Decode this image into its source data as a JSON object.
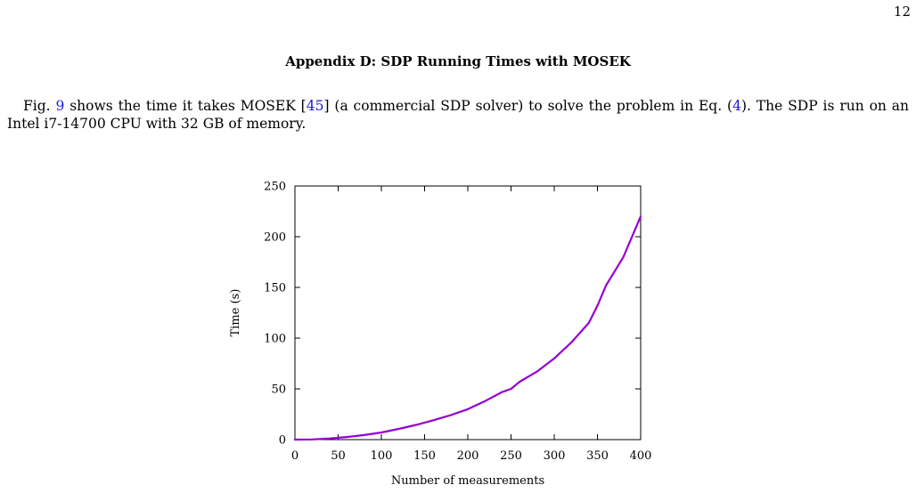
{
  "page": {
    "number": "12"
  },
  "section": {
    "heading": "Appendix D: SDP Running Times with MOSEK"
  },
  "paragraph": {
    "prefix": "Fig. ",
    "fig_ref": "9",
    "mid1": " shows the time it takes MOSEK [",
    "cite_ref": "45",
    "mid2": "] (a commercial SDP solver) to solve the problem in Eq. (",
    "eq_ref": "4",
    "suffix": ").  The SDP is run on an Intel i7-14700 CPU with 32 GB of memory."
  },
  "colors": {
    "series": "#9400d3",
    "link": "#1a1ad6"
  },
  "chart_data": {
    "type": "line",
    "title": "",
    "xlabel": "Number of measurements",
    "ylabel": "Time (s)",
    "xlim": [
      0,
      400
    ],
    "ylim": [
      0,
      250
    ],
    "xticks": [
      0,
      50,
      100,
      150,
      200,
      250,
      300,
      350,
      400
    ],
    "yticks": [
      0,
      50,
      100,
      150,
      200,
      250
    ],
    "grid": false,
    "legend": "none",
    "series": [
      {
        "x": [
          0,
          20,
          40,
          60,
          80,
          100,
          120,
          140,
          160,
          180,
          200,
          220,
          240,
          250,
          260,
          280,
          300,
          320,
          340,
          350,
          360,
          380,
          400
        ],
        "values": [
          0,
          0.2,
          1.1,
          2.5,
          4.5,
          7,
          10.5,
          14.5,
          19,
          24,
          30,
          38,
          47,
          50,
          57,
          67,
          80,
          96,
          115,
          132,
          152,
          180,
          220
        ]
      }
    ]
  }
}
